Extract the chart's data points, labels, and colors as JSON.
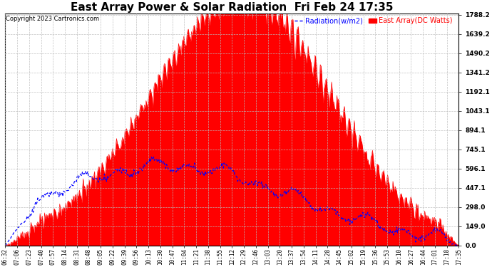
{
  "title": "East Array Power & Solar Radiation  Fri Feb 24 17:35",
  "copyright": "Copyright 2023 Cartronics.com",
  "legend_radiation": "Radiation(w/m2)",
  "legend_east": "East Array(DC Watts)",
  "ylabel_right_values": [
    0.0,
    149.0,
    298.0,
    447.1,
    596.1,
    745.1,
    894.1,
    1043.1,
    1192.1,
    1341.2,
    1490.2,
    1639.2,
    1788.2
  ],
  "ymax": 1788.2,
  "ymin": 0.0,
  "background_color": "#ffffff",
  "grid_color": "#bbbbbb",
  "red_fill_color": "#ff0000",
  "blue_line_color": "#0000ff",
  "title_fontsize": 11,
  "copyright_fontsize": 6,
  "tick_fontsize": 5.5,
  "x_tick_labels": [
    "06:32",
    "07:06",
    "07:23",
    "07:40",
    "07:57",
    "08:14",
    "08:31",
    "08:48",
    "09:05",
    "09:22",
    "09:39",
    "09:56",
    "10:13",
    "10:30",
    "10:47",
    "11:04",
    "11:21",
    "11:38",
    "11:55",
    "12:12",
    "12:29",
    "12:46",
    "13:03",
    "13:20",
    "13:37",
    "13:54",
    "14:11",
    "14:28",
    "14:45",
    "15:02",
    "15:19",
    "15:36",
    "15:53",
    "16:10",
    "16:27",
    "16:44",
    "17:01",
    "17:18",
    "17:35"
  ]
}
